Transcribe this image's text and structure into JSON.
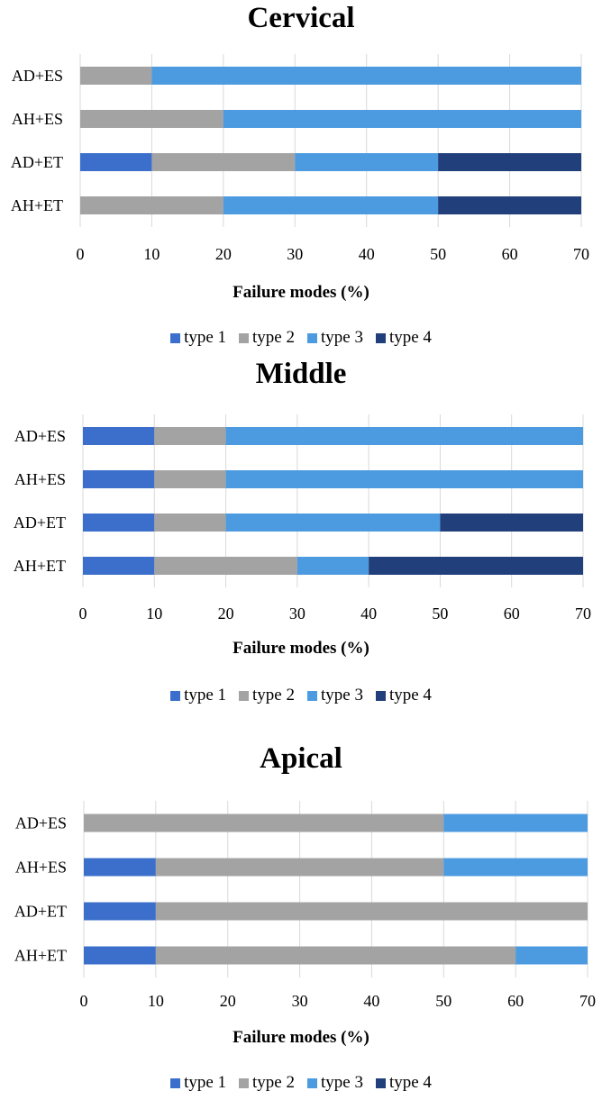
{
  "colors": {
    "type1": "#3b6fcb",
    "type2": "#a3a3a3",
    "type3": "#4c9be0",
    "type4": "#213f7a",
    "grid": "#d9d9d9"
  },
  "legend": [
    "type 1",
    "type 2",
    "type 3",
    "type 4"
  ],
  "chart_data": [
    {
      "type": "bar",
      "orientation": "horizontal",
      "stacked": true,
      "title": "Cervical",
      "xlabel": "Failure modes (%)",
      "ylabel": "",
      "xlim": [
        0,
        70
      ],
      "xticks": [
        0,
        10,
        20,
        30,
        40,
        50,
        60,
        70
      ],
      "grid": true,
      "legend_position": "bottom",
      "categories": [
        "AD+ES",
        "AH+ES",
        "AD+ET",
        "AH+ET"
      ],
      "series": [
        {
          "name": "type 1",
          "values": [
            0,
            0,
            10,
            0
          ]
        },
        {
          "name": "type 2",
          "values": [
            10,
            20,
            20,
            20
          ]
        },
        {
          "name": "type 3",
          "values": [
            60,
            50,
            20,
            30
          ]
        },
        {
          "name": "type 4",
          "values": [
            0,
            0,
            20,
            20
          ]
        }
      ]
    },
    {
      "type": "bar",
      "orientation": "horizontal",
      "stacked": true,
      "title": "Middle",
      "xlabel": "Failure modes (%)",
      "ylabel": "",
      "xlim": [
        0,
        70
      ],
      "xticks": [
        0,
        10,
        20,
        30,
        40,
        50,
        60,
        70
      ],
      "grid": true,
      "legend_position": "bottom",
      "categories": [
        "AD+ES",
        "AH+ES",
        "AD+ET",
        "AH+ET"
      ],
      "series": [
        {
          "name": "type 1",
          "values": [
            10,
            10,
            10,
            10
          ]
        },
        {
          "name": "type 2",
          "values": [
            10,
            10,
            10,
            20
          ]
        },
        {
          "name": "type 3",
          "values": [
            50,
            50,
            30,
            10
          ]
        },
        {
          "name": "type 4",
          "values": [
            0,
            0,
            20,
            30
          ]
        }
      ]
    },
    {
      "type": "bar",
      "orientation": "horizontal",
      "stacked": true,
      "title": "Apical",
      "xlabel": "Failure modes (%)",
      "ylabel": "",
      "xlim": [
        0,
        70
      ],
      "xticks": [
        0,
        10,
        20,
        30,
        40,
        50,
        60,
        70
      ],
      "grid": true,
      "legend_position": "bottom",
      "categories": [
        "AD+ES",
        "AH+ES",
        "AD+ET",
        "AH+ET"
      ],
      "series": [
        {
          "name": "type 1",
          "values": [
            0,
            10,
            10,
            10
          ]
        },
        {
          "name": "type 2",
          "values": [
            50,
            40,
            60,
            50
          ]
        },
        {
          "name": "type 3",
          "values": [
            20,
            20,
            0,
            10
          ]
        },
        {
          "name": "type 4",
          "values": [
            0,
            0,
            0,
            0
          ]
        }
      ]
    }
  ]
}
